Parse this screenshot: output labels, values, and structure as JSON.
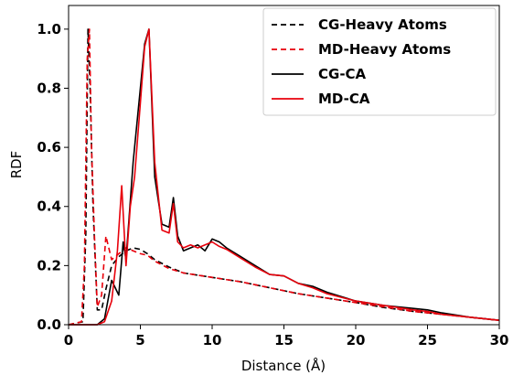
{
  "chart_data": {
    "type": "line",
    "title": "",
    "xlabel": "Distance (Å)",
    "ylabel": "RDF",
    "xlim": [
      0,
      30
    ],
    "ylim": [
      0,
      1.08
    ],
    "xticks": [
      "0",
      "5",
      "10",
      "15",
      "20",
      "25",
      "30"
    ],
    "yticks": [
      "0.0",
      "0.2",
      "0.4",
      "0.6",
      "0.8",
      "1.0"
    ],
    "grid": false,
    "legend_position": "top-right",
    "series": [
      {
        "name": "CG-Heavy Atoms",
        "color": "#000000",
        "dash": "dashed",
        "x": [
          0,
          1.0,
          1.2,
          1.35,
          1.5,
          1.7,
          2.0,
          2.3,
          2.6,
          3.0,
          3.5,
          4.0,
          4.5,
          5.0,
          5.5,
          6.0,
          7.0,
          8.0,
          10.0,
          12.0,
          14.0,
          16.0,
          18.0,
          20.0,
          22.0,
          24.0,
          26.0,
          28.0,
          30.0
        ],
        "y": [
          0.0,
          0.01,
          0.3,
          1.0,
          0.8,
          0.4,
          0.05,
          0.05,
          0.12,
          0.2,
          0.23,
          0.25,
          0.26,
          0.255,
          0.24,
          0.22,
          0.195,
          0.175,
          0.16,
          0.145,
          0.125,
          0.105,
          0.09,
          0.075,
          0.058,
          0.045,
          0.035,
          0.025,
          0.015
        ]
      },
      {
        "name": "MD-Heavy Atoms",
        "color": "#e8000b",
        "dash": "dashed",
        "x": [
          0,
          0.9,
          1.1,
          1.3,
          1.45,
          1.6,
          1.8,
          2.0,
          2.3,
          2.6,
          3.0,
          3.5,
          4.0,
          4.5,
          5.0,
          5.5,
          6.0,
          7.0,
          8.0,
          10.0,
          12.0,
          14.0,
          16.0,
          18.0,
          20.0,
          22.0,
          24.0,
          26.0,
          28.0,
          30.0
        ],
        "y": [
          0.0,
          0.01,
          0.2,
          0.9,
          1.0,
          0.6,
          0.3,
          0.06,
          0.1,
          0.3,
          0.22,
          0.24,
          0.26,
          0.25,
          0.24,
          0.235,
          0.215,
          0.19,
          0.175,
          0.16,
          0.145,
          0.125,
          0.105,
          0.09,
          0.075,
          0.06,
          0.045,
          0.035,
          0.025,
          0.015
        ]
      },
      {
        "name": "CG-CA",
        "color": "#000000",
        "dash": "solid",
        "x": [
          0,
          2.0,
          2.5,
          3.0,
          3.5,
          3.8,
          4.0,
          4.2,
          4.5,
          5.0,
          5.3,
          5.6,
          6.0,
          6.5,
          7.0,
          7.3,
          7.6,
          8.0,
          8.5,
          9.0,
          9.5,
          10.0,
          10.5,
          11.0,
          12.0,
          13.0,
          14.0,
          15.0,
          16.0,
          17.0,
          18.0,
          20.0,
          22.0,
          24.0,
          25.0,
          26.0,
          28.0,
          30.0
        ],
        "y": [
          0.0,
          0.0,
          0.02,
          0.15,
          0.1,
          0.28,
          0.22,
          0.35,
          0.55,
          0.8,
          0.95,
          1.0,
          0.5,
          0.34,
          0.33,
          0.43,
          0.3,
          0.25,
          0.26,
          0.27,
          0.25,
          0.29,
          0.28,
          0.26,
          0.23,
          0.2,
          0.17,
          0.165,
          0.14,
          0.13,
          0.11,
          0.08,
          0.065,
          0.055,
          0.05,
          0.04,
          0.025,
          0.015
        ]
      },
      {
        "name": "MD-CA",
        "color": "#e8000b",
        "dash": "solid",
        "x": [
          0,
          2.0,
          2.5,
          3.0,
          3.4,
          3.7,
          4.0,
          4.3,
          4.6,
          5.0,
          5.3,
          5.6,
          6.0,
          6.5,
          7.0,
          7.3,
          7.6,
          8.0,
          8.5,
          9.0,
          9.5,
          10.0,
          10.5,
          11.0,
          12.0,
          13.0,
          14.0,
          15.0,
          16.0,
          17.0,
          18.0,
          20.0,
          22.0,
          24.0,
          25.0,
          26.0,
          28.0,
          30.0
        ],
        "y": [
          0.0,
          0.0,
          0.01,
          0.08,
          0.25,
          0.47,
          0.2,
          0.4,
          0.5,
          0.75,
          0.94,
          1.0,
          0.55,
          0.32,
          0.31,
          0.41,
          0.28,
          0.26,
          0.27,
          0.26,
          0.27,
          0.28,
          0.265,
          0.255,
          0.225,
          0.195,
          0.17,
          0.165,
          0.14,
          0.125,
          0.105,
          0.08,
          0.065,
          0.05,
          0.045,
          0.035,
          0.025,
          0.015
        ]
      }
    ],
    "legend": [
      {
        "label": "CG-Heavy Atoms",
        "color": "#000000",
        "dash": "dashed"
      },
      {
        "label": "MD-Heavy Atoms",
        "color": "#e8000b",
        "dash": "dashed"
      },
      {
        "label": "CG-CA",
        "color": "#000000",
        "dash": "solid"
      },
      {
        "label": "MD-CA",
        "color": "#e8000b",
        "dash": "solid"
      }
    ]
  }
}
